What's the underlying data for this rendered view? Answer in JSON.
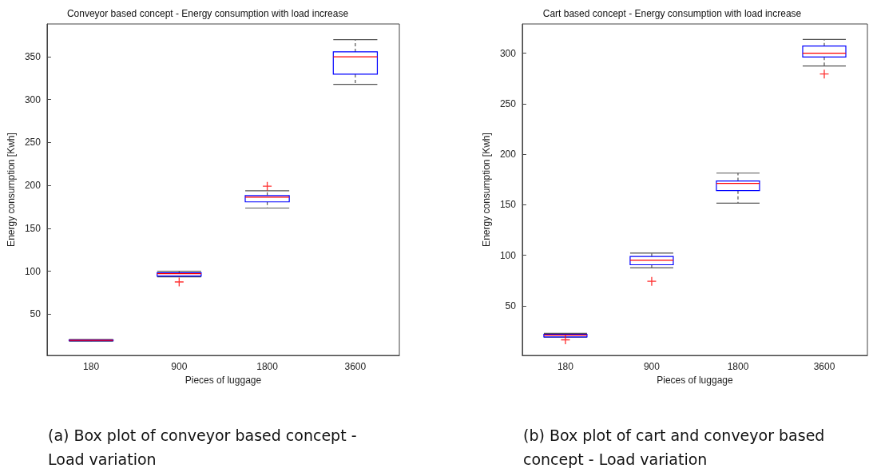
{
  "chart_data": [
    {
      "type": "box",
      "title": "Conveyor based concept - Energy consumption with load increase",
      "xlabel": "Pieces of luggage",
      "ylabel": "Energy consumption [Kwh]",
      "categories": [
        "180",
        "900",
        "1800",
        "3600"
      ],
      "ylim": [
        2,
        388
      ],
      "yticks": [
        50,
        100,
        150,
        200,
        250,
        300,
        350
      ],
      "annotations": [
        "(a) Box plot of conveyor based concept - Load variation"
      ],
      "series": [
        {
          "color": "#0000ff",
          "boxes": [
            {
              "low": 18.5,
              "q1": 19,
              "median": 19.5,
              "q3": 20,
              "high": 20.5
            },
            {
              "low": 93.5,
              "q1": 94.4,
              "median": 97.2,
              "q3": 98.1,
              "high": 100,
              "outliers": [
                87.6
              ]
            },
            {
              "low": 173.6,
              "q1": 180.8,
              "median": 186.3,
              "q3": 188.2,
              "high": 193.8,
              "outliers": [
                199
              ]
            },
            {
              "low": 317.7,
              "q1": 329.5,
              "median": 349.7,
              "q3": 355.5,
              "high": 369.8
            }
          ]
        }
      ]
    },
    {
      "type": "box",
      "title": "Cart based concept - Energy consumption with load increase",
      "xlabel": "Pieces of luggage",
      "ylabel": "Energy consumption [Kwh]",
      "categories": [
        "180",
        "900",
        "1800",
        "3600"
      ],
      "ylim": [
        1,
        329
      ],
      "yticks": [
        50,
        100,
        150,
        200,
        250,
        300
      ],
      "annotations": [
        "(b) Box plot of cart and conveyor based concept - Load variation"
      ],
      "series": [
        {
          "color": "#0000ff",
          "boxes": [
            {
              "low": 19,
              "q1": 19.2,
              "median": 21.1,
              "q3": 21.9,
              "high": 22.9,
              "outliers": [
                16.4
              ]
            },
            {
              "low": 87.6,
              "q1": 90.7,
              "median": 95.2,
              "q3": 98.9,
              "high": 102.3,
              "outliers": [
                74.4
              ]
            },
            {
              "low": 151.7,
              "q1": 164.1,
              "median": 171.2,
              "q3": 173.6,
              "high": 181.4
            },
            {
              "low": 287.4,
              "q1": 296.3,
              "median": 300,
              "q3": 307.1,
              "high": 313.7,
              "outliers": [
                279.5
              ]
            }
          ]
        }
      ]
    }
  ]
}
